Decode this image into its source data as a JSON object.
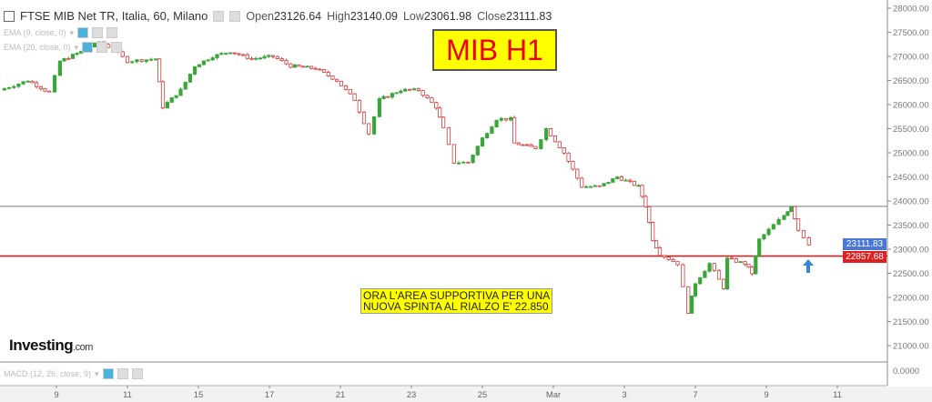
{
  "header": {
    "title": "FTSE MIB Net TR, Italia, 60, Milano",
    "open_label": "Open",
    "open": "23126.64",
    "high_label": "High",
    "high": "23140.09",
    "low_label": "Low",
    "low": "23061.98",
    "close_label": "Close",
    "close": "23111.83"
  },
  "indicators": [
    "EMA (9, close, 0)",
    "EMA (20, close, 0)"
  ],
  "macd": {
    "label": "MACD (12, 26, close, 9)",
    "axis_value": "0.0000"
  },
  "badge": "MIB H1",
  "note": [
    "ORA L'AREA SUPPORTIVA PER UNA",
    "NUOVA SPINTA AL RIALZO E' 22.850"
  ],
  "logo": {
    "main": "Investing",
    "suffix": ".com"
  },
  "colors": {
    "up": "#3aa63a",
    "down": "#d23a3a",
    "support": "#e02020",
    "resistance": "#777777",
    "last_price": "#4a78d6"
  },
  "chart_data": {
    "type": "candlestick",
    "title": "",
    "x_ticks": [
      "9",
      "11",
      "15",
      "17",
      "21",
      "23",
      "25",
      "Mar",
      "3",
      "7",
      "9",
      "11"
    ],
    "y_ticks": [
      28000,
      27500,
      27000,
      26500,
      26000,
      25500,
      25000,
      24500,
      24000,
      23500,
      23000,
      22500,
      22000,
      21500,
      21000
    ],
    "ylim": [
      20850,
      28050
    ],
    "x_unit": "trading days from tick '9'",
    "close_path": [
      [
        -1.6,
        26300
      ],
      [
        -0.8,
        26500
      ],
      [
        -0.2,
        26250
      ],
      [
        0.1,
        26900
      ],
      [
        0.7,
        27100
      ],
      [
        1.2,
        27300
      ],
      [
        1.6,
        27150
      ],
      [
        2.0,
        26900
      ],
      [
        2.8,
        26950
      ],
      [
        3.0,
        25950
      ],
      [
        3.5,
        26300
      ],
      [
        3.9,
        26800
      ],
      [
        4.4,
        27000
      ],
      [
        4.9,
        27100
      ],
      [
        5.5,
        26950
      ],
      [
        6.1,
        27000
      ],
      [
        6.6,
        26800
      ],
      [
        7.3,
        26750
      ],
      [
        7.9,
        26500
      ],
      [
        8.4,
        26100
      ],
      [
        8.8,
        25400
      ],
      [
        9.1,
        26100
      ],
      [
        9.7,
        26300
      ],
      [
        10.2,
        26300
      ],
      [
        10.7,
        25950
      ],
      [
        10.9,
        25500
      ],
      [
        11.2,
        24800
      ],
      [
        11.6,
        24800
      ],
      [
        12.0,
        25300
      ],
      [
        12.4,
        25700
      ],
      [
        12.8,
        25700
      ],
      [
        12.9,
        25200
      ],
      [
        13.5,
        25100
      ],
      [
        13.8,
        25500
      ],
      [
        14.3,
        25000
      ],
      [
        14.8,
        24300
      ],
      [
        15.3,
        24300
      ],
      [
        15.8,
        24500
      ],
      [
        16.4,
        24300
      ],
      [
        16.6,
        23900
      ],
      [
        16.8,
        23200
      ],
      [
        17.0,
        22900
      ],
      [
        17.5,
        22700
      ],
      [
        17.8,
        21700
      ],
      [
        18.0,
        22300
      ],
      [
        18.4,
        22700
      ],
      [
        18.8,
        22200
      ],
      [
        18.9,
        22800
      ],
      [
        19.4,
        22700
      ],
      [
        19.6,
        22500
      ],
      [
        19.8,
        23200
      ],
      [
        20.2,
        23500
      ],
      [
        20.5,
        23700
      ],
      [
        20.7,
        23900
      ],
      [
        20.9,
        23400
      ],
      [
        21.2,
        23111.83
      ]
    ],
    "horizontal_lines": [
      {
        "price": 23890,
        "color": "#777777"
      },
      {
        "price": 22857.68,
        "label": "22857.68",
        "color": "#e02020"
      }
    ],
    "last_price_label": "23111.83"
  }
}
